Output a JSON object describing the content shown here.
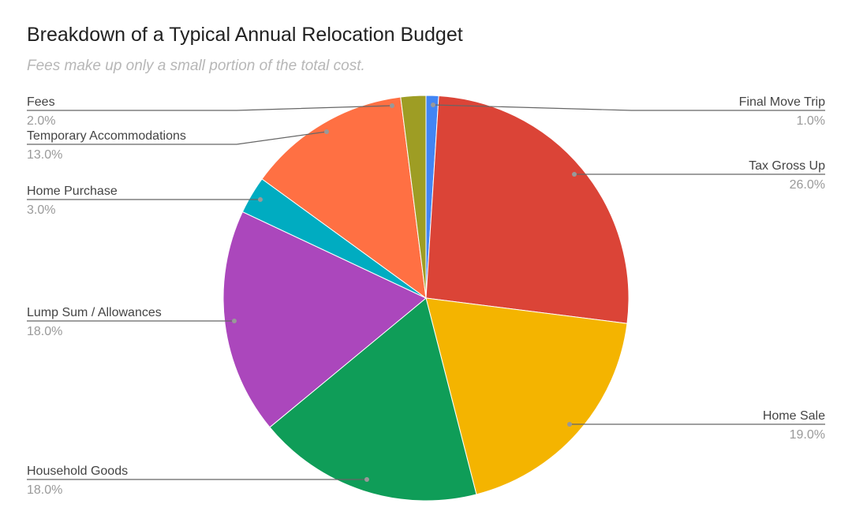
{
  "chart_data": {
    "type": "pie",
    "title": "Breakdown of a Typical Annual Relocation Budget",
    "subtitle": "Fees make up only a small portion of the total cost.",
    "start": "top",
    "direction": "clockwise",
    "slices": [
      {
        "label": "Final Move Trip",
        "value": 1.0,
        "pct_label": "1.0%",
        "color": "#4285F4"
      },
      {
        "label": "Tax Gross Up",
        "value": 26.0,
        "pct_label": "26.0%",
        "color": "#DB4437"
      },
      {
        "label": "Home Sale",
        "value": 19.0,
        "pct_label": "19.0%",
        "color": "#F4B400"
      },
      {
        "label": "Household Goods",
        "value": 18.0,
        "pct_label": "18.0%",
        "color": "#0F9D58"
      },
      {
        "label": "Lump Sum / Allowances",
        "value": 18.0,
        "pct_label": "18.0%",
        "color": "#AB47BC"
      },
      {
        "label": "Home Purchase",
        "value": 3.0,
        "pct_label": "3.0%",
        "color": "#00ACC1"
      },
      {
        "label": "Temporary Accommodations",
        "value": 13.0,
        "pct_label": "13.0%",
        "color": "#FF7043"
      },
      {
        "label": "Fees",
        "value": 2.0,
        "pct_label": "2.0%",
        "color": "#9E9D24"
      }
    ]
  }
}
